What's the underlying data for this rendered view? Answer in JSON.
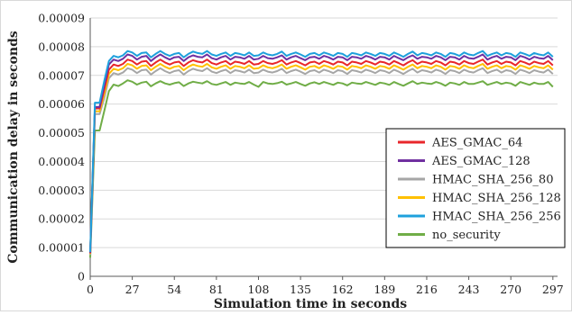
{
  "chart_data": {
    "type": "line",
    "xlabel": "Simulation time in seconds",
    "ylabel": "Communication delay in seconds",
    "xlim": [
      0,
      300
    ],
    "ylim": [
      0,
      9e-05
    ],
    "x_ticks": [
      0,
      27,
      54,
      81,
      108,
      135,
      162,
      189,
      216,
      243,
      270,
      297
    ],
    "x_tick_labels": [
      "0",
      "27",
      "54",
      "81",
      "108",
      "135",
      "162",
      "189",
      "216",
      "243",
      "270",
      "297"
    ],
    "y_ticks": [
      0,
      1e-05,
      2e-05,
      3e-05,
      4e-05,
      5e-05,
      6e-05,
      7e-05,
      8e-05,
      9e-05
    ],
    "y_tick_labels": [
      "0",
      "0.00001",
      "0.00002",
      "0.00003",
      "0.00004",
      "0.00005",
      "0.00006",
      "0.00007",
      "0.00008",
      "0.00009"
    ],
    "grid": "horizontal",
    "legend_position": "right",
    "x": [
      0,
      3,
      6,
      9,
      12,
      15,
      18,
      21,
      24,
      27,
      30,
      33,
      36,
      39,
      42,
      45,
      48,
      51,
      54,
      57,
      60,
      63,
      66,
      69,
      72,
      75,
      78,
      81,
      84,
      87,
      90,
      93,
      96,
      99,
      102,
      105,
      108,
      111,
      114,
      117,
      120,
      123,
      126,
      129,
      132,
      135,
      138,
      141,
      144,
      147,
      150,
      153,
      156,
      159,
      162,
      165,
      168,
      171,
      174,
      177,
      180,
      183,
      186,
      189,
      192,
      195,
      198,
      201,
      204,
      207,
      210,
      213,
      216,
      219,
      222,
      225,
      228,
      231,
      234,
      237,
      240,
      243,
      246,
      249,
      252,
      255,
      258,
      261,
      264,
      267,
      270,
      273,
      276,
      279,
      282,
      285,
      288,
      291,
      294,
      297
    ],
    "series": [
      {
        "name": "AES_GMAC_64",
        "color": "#e8262b",
        "values": [
          8e-06,
          5.85e-05,
          5.85e-05,
          6.5e-05,
          7.2e-05,
          7.38e-05,
          7.33e-05,
          7.4e-05,
          7.55e-05,
          7.5e-05,
          7.38e-05,
          7.48e-05,
          7.5e-05,
          7.33e-05,
          7.45e-05,
          7.55e-05,
          7.45e-05,
          7.38e-05,
          7.45e-05,
          7.48e-05,
          7.33e-05,
          7.45e-05,
          7.53e-05,
          7.48e-05,
          7.45e-05,
          7.55e-05,
          7.43e-05,
          7.38e-05,
          7.45e-05,
          7.5e-05,
          7.38e-05,
          7.48e-05,
          7.45e-05,
          7.4e-05,
          7.5e-05,
          7.38e-05,
          7.4e-05,
          7.5e-05,
          7.43e-05,
          7.4e-05,
          7.45e-05,
          7.53e-05,
          7.38e-05,
          7.45e-05,
          7.5e-05,
          7.43e-05,
          7.35e-05,
          7.45e-05,
          7.48e-05,
          7.4e-05,
          7.5e-05,
          7.45e-05,
          7.38e-05,
          7.48e-05,
          7.45e-05,
          7.35e-05,
          7.48e-05,
          7.45e-05,
          7.4e-05,
          7.5e-05,
          7.45e-05,
          7.38e-05,
          7.48e-05,
          7.45e-05,
          7.38e-05,
          7.5e-05,
          7.43e-05,
          7.35e-05,
          7.45e-05,
          7.53e-05,
          7.4e-05,
          7.48e-05,
          7.45e-05,
          7.4e-05,
          7.5e-05,
          7.45e-05,
          7.35e-05,
          7.48e-05,
          7.45e-05,
          7.38e-05,
          7.5e-05,
          7.43e-05,
          7.4e-05,
          7.48e-05,
          7.55e-05,
          7.38e-05,
          7.45e-05,
          7.5e-05,
          7.4e-05,
          7.48e-05,
          7.45e-05,
          7.35e-05,
          7.5e-05,
          7.45e-05,
          7.38e-05,
          7.48e-05,
          7.43e-05,
          7.4e-05,
          7.5e-05,
          7.35e-05
        ]
      },
      {
        "name": "AES_GMAC_128",
        "color": "#7030a0",
        "values": [
          8.2e-06,
          5.9e-05,
          5.9e-05,
          6.65e-05,
          7.38e-05,
          7.55e-05,
          7.5e-05,
          7.58e-05,
          7.73e-05,
          7.68e-05,
          7.55e-05,
          7.65e-05,
          7.68e-05,
          7.5e-05,
          7.63e-05,
          7.73e-05,
          7.63e-05,
          7.55e-05,
          7.63e-05,
          7.65e-05,
          7.5e-05,
          7.63e-05,
          7.7e-05,
          7.65e-05,
          7.63e-05,
          7.73e-05,
          7.6e-05,
          7.55e-05,
          7.63e-05,
          7.68e-05,
          7.55e-05,
          7.65e-05,
          7.63e-05,
          7.58e-05,
          7.68e-05,
          7.55e-05,
          7.58e-05,
          7.68e-05,
          7.6e-05,
          7.58e-05,
          7.63e-05,
          7.7e-05,
          7.55e-05,
          7.63e-05,
          7.68e-05,
          7.6e-05,
          7.53e-05,
          7.63e-05,
          7.65e-05,
          7.58e-05,
          7.68e-05,
          7.63e-05,
          7.55e-05,
          7.65e-05,
          7.63e-05,
          7.53e-05,
          7.65e-05,
          7.63e-05,
          7.58e-05,
          7.68e-05,
          7.63e-05,
          7.55e-05,
          7.65e-05,
          7.63e-05,
          7.55e-05,
          7.68e-05,
          7.6e-05,
          7.53e-05,
          7.63e-05,
          7.7e-05,
          7.58e-05,
          7.65e-05,
          7.63e-05,
          7.58e-05,
          7.68e-05,
          7.63e-05,
          7.53e-05,
          7.65e-05,
          7.63e-05,
          7.55e-05,
          7.68e-05,
          7.6e-05,
          7.58e-05,
          7.65e-05,
          7.73e-05,
          7.55e-05,
          7.63e-05,
          7.68e-05,
          7.58e-05,
          7.65e-05,
          7.63e-05,
          7.53e-05,
          7.68e-05,
          7.63e-05,
          7.55e-05,
          7.65e-05,
          7.6e-05,
          7.58e-05,
          7.68e-05,
          7.53e-05
        ]
      },
      {
        "name": "HMAC_SHA_256_80",
        "color": "#a6a6a6",
        "values": [
          7.5e-06,
          5.65e-05,
          5.65e-05,
          6.2e-05,
          6.9e-05,
          7.08e-05,
          7.03e-05,
          7.1e-05,
          7.25e-05,
          7.2e-05,
          7.08e-05,
          7.18e-05,
          7.2e-05,
          7.03e-05,
          7.15e-05,
          7.25e-05,
          7.15e-05,
          7.08e-05,
          7.15e-05,
          7.18e-05,
          7.03e-05,
          7.15e-05,
          7.23e-05,
          7.18e-05,
          7.15e-05,
          7.25e-05,
          7.13e-05,
          7.08e-05,
          7.15e-05,
          7.2e-05,
          7.08e-05,
          7.18e-05,
          7.15e-05,
          7.1e-05,
          7.2e-05,
          7.08e-05,
          7.1e-05,
          7.2e-05,
          7.13e-05,
          7.1e-05,
          7.15e-05,
          7.23e-05,
          7.08e-05,
          7.15e-05,
          7.2e-05,
          7.13e-05,
          7.05e-05,
          7.15e-05,
          7.18e-05,
          7.1e-05,
          7.2e-05,
          7.15e-05,
          7.08e-05,
          7.18e-05,
          7.15e-05,
          7.05e-05,
          7.18e-05,
          7.15e-05,
          7.1e-05,
          7.2e-05,
          7.15e-05,
          7.08e-05,
          7.18e-05,
          7.15e-05,
          7.08e-05,
          7.2e-05,
          7.13e-05,
          7.05e-05,
          7.15e-05,
          7.23e-05,
          7.1e-05,
          7.18e-05,
          7.15e-05,
          7.1e-05,
          7.2e-05,
          7.15e-05,
          7.05e-05,
          7.18e-05,
          7.15e-05,
          7.08e-05,
          7.2e-05,
          7.13e-05,
          7.1e-05,
          7.18e-05,
          7.25e-05,
          7.08e-05,
          7.15e-05,
          7.2e-05,
          7.1e-05,
          7.18e-05,
          7.15e-05,
          7.05e-05,
          7.2e-05,
          7.15e-05,
          7.08e-05,
          7.18e-05,
          7.13e-05,
          7.1e-05,
          7.2e-05,
          7.05e-05
        ]
      },
      {
        "name": "HMAC_SHA_256_128",
        "color": "#ffc000",
        "values": [
          7.8e-06,
          5.75e-05,
          5.75e-05,
          6.35e-05,
          7.05e-05,
          7.23e-05,
          7.18e-05,
          7.25e-05,
          7.4e-05,
          7.35e-05,
          7.23e-05,
          7.33e-05,
          7.35e-05,
          7.18e-05,
          7.3e-05,
          7.4e-05,
          7.3e-05,
          7.23e-05,
          7.3e-05,
          7.33e-05,
          7.18e-05,
          7.3e-05,
          7.38e-05,
          7.33e-05,
          7.3e-05,
          7.4e-05,
          7.28e-05,
          7.23e-05,
          7.3e-05,
          7.35e-05,
          7.23e-05,
          7.33e-05,
          7.3e-05,
          7.25e-05,
          7.35e-05,
          7.23e-05,
          7.25e-05,
          7.35e-05,
          7.28e-05,
          7.25e-05,
          7.3e-05,
          7.38e-05,
          7.23e-05,
          7.3e-05,
          7.35e-05,
          7.28e-05,
          7.2e-05,
          7.3e-05,
          7.33e-05,
          7.25e-05,
          7.35e-05,
          7.3e-05,
          7.23e-05,
          7.33e-05,
          7.3e-05,
          7.2e-05,
          7.33e-05,
          7.3e-05,
          7.25e-05,
          7.35e-05,
          7.3e-05,
          7.23e-05,
          7.33e-05,
          7.3e-05,
          7.23e-05,
          7.35e-05,
          7.28e-05,
          7.2e-05,
          7.3e-05,
          7.38e-05,
          7.25e-05,
          7.33e-05,
          7.3e-05,
          7.25e-05,
          7.35e-05,
          7.3e-05,
          7.2e-05,
          7.33e-05,
          7.3e-05,
          7.23e-05,
          7.35e-05,
          7.28e-05,
          7.25e-05,
          7.33e-05,
          7.4e-05,
          7.23e-05,
          7.3e-05,
          7.35e-05,
          7.25e-05,
          7.33e-05,
          7.3e-05,
          7.2e-05,
          7.35e-05,
          7.3e-05,
          7.23e-05,
          7.33e-05,
          7.28e-05,
          7.25e-05,
          7.35e-05,
          7.2e-05
        ]
      },
      {
        "name": "HMAC_SHA_256_256",
        "color": "#1ea0dc",
        "values": [
          8.5e-06,
          6.05e-05,
          6.05e-05,
          6.8e-05,
          7.5e-05,
          7.68e-05,
          7.63e-05,
          7.7e-05,
          7.85e-05,
          7.8e-05,
          7.68e-05,
          7.78e-05,
          7.8e-05,
          7.63e-05,
          7.75e-05,
          7.85e-05,
          7.75e-05,
          7.68e-05,
          7.75e-05,
          7.78e-05,
          7.63e-05,
          7.75e-05,
          7.83e-05,
          7.78e-05,
          7.75e-05,
          7.85e-05,
          7.73e-05,
          7.68e-05,
          7.75e-05,
          7.8e-05,
          7.68e-05,
          7.78e-05,
          7.75e-05,
          7.7e-05,
          7.8e-05,
          7.68e-05,
          7.7e-05,
          7.8e-05,
          7.73e-05,
          7.7e-05,
          7.75e-05,
          7.83e-05,
          7.68e-05,
          7.75e-05,
          7.8e-05,
          7.73e-05,
          7.65e-05,
          7.75e-05,
          7.78e-05,
          7.7e-05,
          7.8e-05,
          7.75e-05,
          7.68e-05,
          7.78e-05,
          7.75e-05,
          7.65e-05,
          7.78e-05,
          7.75e-05,
          7.7e-05,
          7.8e-05,
          7.75e-05,
          7.68e-05,
          7.78e-05,
          7.75e-05,
          7.68e-05,
          7.8e-05,
          7.73e-05,
          7.65e-05,
          7.75e-05,
          7.83e-05,
          7.7e-05,
          7.78e-05,
          7.75e-05,
          7.7e-05,
          7.8e-05,
          7.75e-05,
          7.65e-05,
          7.78e-05,
          7.75e-05,
          7.68e-05,
          7.8e-05,
          7.73e-05,
          7.7e-05,
          7.78e-05,
          7.85e-05,
          7.68e-05,
          7.75e-05,
          7.8e-05,
          7.7e-05,
          7.78e-05,
          7.75e-05,
          7.65e-05,
          7.8e-05,
          7.75e-05,
          7.68e-05,
          7.78e-05,
          7.73e-05,
          7.7e-05,
          7.8e-05,
          7.65e-05
        ]
      },
      {
        "name": "no_security",
        "color": "#70ad47",
        "values": [
          6.5e-06,
          5.08e-05,
          5.08e-05,
          5.75e-05,
          6.45e-05,
          6.68e-05,
          6.63e-05,
          6.72e-05,
          6.83e-05,
          6.78e-05,
          6.68e-05,
          6.75e-05,
          6.78e-05,
          6.62e-05,
          6.72e-05,
          6.8e-05,
          6.72e-05,
          6.68e-05,
          6.73e-05,
          6.76e-05,
          6.63e-05,
          6.72e-05,
          6.78e-05,
          6.75e-05,
          6.72e-05,
          6.8e-05,
          6.7e-05,
          6.67e-05,
          6.72e-05,
          6.77e-05,
          6.67e-05,
          6.75e-05,
          6.72e-05,
          6.7e-05,
          6.77e-05,
          6.68e-05,
          6.6e-05,
          6.77e-05,
          6.72e-05,
          6.7e-05,
          6.73e-05,
          6.78e-05,
          6.68e-05,
          6.72e-05,
          6.77e-05,
          6.7e-05,
          6.64e-05,
          6.72e-05,
          6.76e-05,
          6.7e-05,
          6.77e-05,
          6.72e-05,
          6.67e-05,
          6.75e-05,
          6.72e-05,
          6.65e-05,
          6.75e-05,
          6.72e-05,
          6.7e-05,
          6.77e-05,
          6.72e-05,
          6.67e-05,
          6.75e-05,
          6.72e-05,
          6.67e-05,
          6.77e-05,
          6.7e-05,
          6.64e-05,
          6.72e-05,
          6.8e-05,
          6.7e-05,
          6.75e-05,
          6.72e-05,
          6.7e-05,
          6.77e-05,
          6.72e-05,
          6.64e-05,
          6.75e-05,
          6.72e-05,
          6.67e-05,
          6.77e-05,
          6.7e-05,
          6.7e-05,
          6.75e-05,
          6.8e-05,
          6.67e-05,
          6.72e-05,
          6.77e-05,
          6.7e-05,
          6.75e-05,
          6.72e-05,
          6.64e-05,
          6.77e-05,
          6.72e-05,
          6.67e-05,
          6.75e-05,
          6.7e-05,
          6.7e-05,
          6.77e-05,
          6.6e-05
        ]
      }
    ]
  }
}
